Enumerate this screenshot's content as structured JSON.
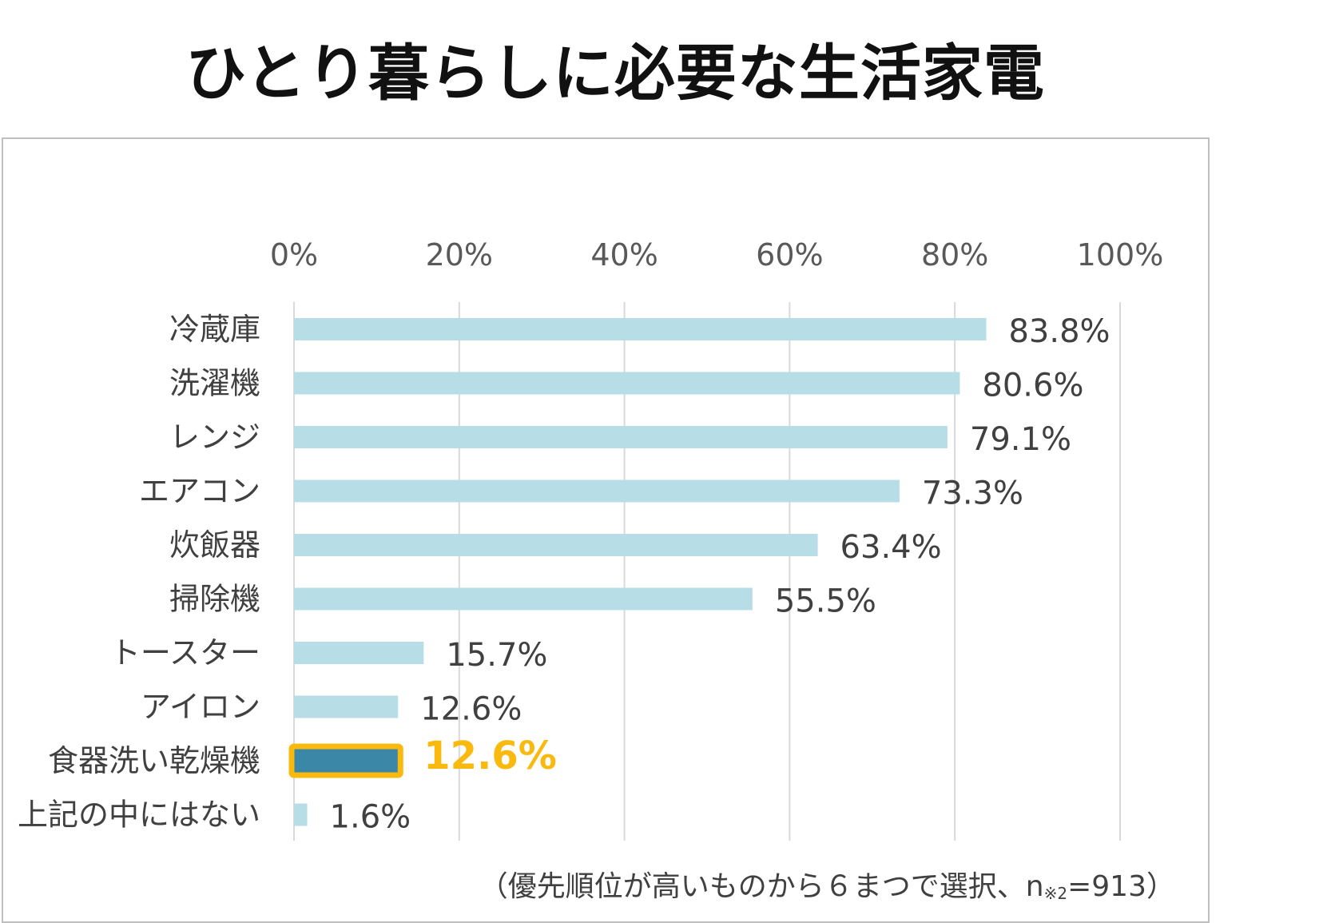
{
  "title": "ひとり暮らしに必要な生活家電",
  "note": {
    "prefix": "（優先順位が高いものから６まつで選択、n",
    "sub": "※2",
    "suffix": "=913）"
  },
  "colors": {
    "bar": "#b7dde7",
    "highlight_bar": "#3a87a8",
    "highlight_border": "#f9b90f",
    "highlight_text": "#f9b90f",
    "gridline": "#d9d9d9"
  },
  "chart_data": {
    "type": "bar",
    "orientation": "horizontal",
    "title": "ひとり暮らしに必要な生活家電",
    "xlim": [
      0,
      100
    ],
    "x_ticks": [
      "0%",
      "20%",
      "40%",
      "60%",
      "80%",
      "100%"
    ],
    "x_tick_values": [
      0,
      20,
      40,
      60,
      80,
      100
    ],
    "x_axis_position": "top",
    "grid": true,
    "categories": [
      "冷蔵庫",
      "洗濯機",
      "レンジ",
      "エアコン",
      "炊飯器",
      "掃除機",
      "トースター",
      "アイロン",
      "食器洗い乾燥機",
      "上記の中にはない"
    ],
    "values": [
      83.8,
      80.6,
      79.1,
      73.3,
      63.4,
      55.5,
      15.7,
      12.6,
      12.6,
      1.6
    ],
    "labels": [
      "83.8%",
      "80.6%",
      "79.1%",
      "73.3%",
      "63.4%",
      "55.5%",
      "15.7%",
      "12.6%",
      "12.6%",
      "1.6%"
    ],
    "highlight_index": 8
  }
}
